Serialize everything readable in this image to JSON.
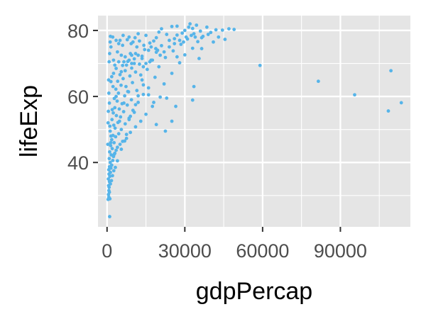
{
  "chart_data": {
    "type": "scatter",
    "xlabel": "gdpPercap",
    "ylabel": "lifeExp",
    "xlim": [
      -3500,
      117000
    ],
    "ylim": [
      20.5,
      84.5
    ],
    "x_ticks": [
      0,
      30000,
      60000,
      90000
    ],
    "x_tick_labels": [
      "0",
      "30000",
      "60000",
      "90000"
    ],
    "y_ticks": [
      40,
      60,
      80
    ],
    "y_tick_labels": [
      "40",
      "60",
      "80"
    ],
    "grid": true,
    "point_color": "#56b4e9",
    "panel_background": "#e5e5e5",
    "grid_color": "#ffffff",
    "points": [
      [
        1000,
        23.6
      ],
      [
        400,
        28.8
      ],
      [
        550,
        30.3
      ],
      [
        700,
        31.5
      ],
      [
        800,
        32.5
      ],
      [
        600,
        33.0
      ],
      [
        900,
        34.2
      ],
      [
        500,
        35.0
      ],
      [
        1100,
        35.8
      ],
      [
        750,
        36.5
      ],
      [
        1300,
        37.0
      ],
      [
        650,
        37.8
      ],
      [
        1500,
        38.3
      ],
      [
        950,
        38.7
      ],
      [
        1800,
        39.2
      ],
      [
        1200,
        40.0
      ],
      [
        2200,
        40.6
      ],
      [
        850,
        41.2
      ],
      [
        2500,
        41.8
      ],
      [
        1600,
        42.3
      ],
      [
        3000,
        42.8
      ],
      [
        1000,
        43.2
      ],
      [
        3500,
        43.7
      ],
      [
        2000,
        44.2
      ],
      [
        4000,
        44.6
      ],
      [
        1400,
        45.1
      ],
      [
        5000,
        45.5
      ],
      [
        2700,
        46.0
      ],
      [
        6000,
        46.4
      ],
      [
        1800,
        46.9
      ],
      [
        7500,
        47.3
      ],
      [
        3300,
        47.8
      ],
      [
        2300,
        48.2
      ],
      [
        4500,
        48.7
      ],
      [
        9000,
        49.1
      ],
      [
        1200,
        49.5
      ],
      [
        5500,
        50.0
      ],
      [
        3100,
        50.4
      ],
      [
        11000,
        50.8
      ],
      [
        2600,
        51.3
      ],
      [
        7000,
        51.7
      ],
      [
        4200,
        52.1
      ],
      [
        13000,
        52.5
      ],
      [
        1900,
        53.0
      ],
      [
        8500,
        53.4
      ],
      [
        5200,
        53.8
      ],
      [
        3600,
        54.2
      ],
      [
        15000,
        54.6
      ],
      [
        2400,
        55.0
      ],
      [
        6400,
        55.4
      ],
      [
        10000,
        55.8
      ],
      [
        4700,
        56.2
      ],
      [
        3000,
        56.6
      ],
      [
        17500,
        57.0
      ],
      [
        7800,
        57.4
      ],
      [
        5800,
        57.8
      ],
      [
        12000,
        58.2
      ],
      [
        3900,
        58.6
      ],
      [
        9400,
        59.0
      ],
      [
        2800,
        59.4
      ],
      [
        20500,
        59.8
      ],
      [
        6800,
        60.2
      ],
      [
        14000,
        60.6
      ],
      [
        4400,
        61.0
      ],
      [
        8300,
        61.4
      ],
      [
        11500,
        61.8
      ],
      [
        3400,
        62.2
      ],
      [
        16000,
        62.6
      ],
      [
        7300,
        63.0
      ],
      [
        5400,
        63.4
      ],
      [
        22000,
        63.8
      ],
      [
        9800,
        64.2
      ],
      [
        4100,
        64.6
      ],
      [
        13500,
        65.0
      ],
      [
        6200,
        65.4
      ],
      [
        18500,
        65.8
      ],
      [
        8800,
        66.2
      ],
      [
        5000,
        66.6
      ],
      [
        25000,
        67.0
      ],
      [
        11000,
        67.4
      ],
      [
        7000,
        67.8
      ],
      [
        15500,
        68.2
      ],
      [
        9500,
        68.6
      ],
      [
        20000,
        69.0
      ],
      [
        6000,
        69.4
      ],
      [
        12500,
        69.8
      ],
      [
        28000,
        70.2
      ],
      [
        8000,
        70.6
      ],
      [
        17000,
        71.0
      ],
      [
        10500,
        71.4
      ],
      [
        22500,
        71.8
      ],
      [
        13500,
        72.2
      ],
      [
        30000,
        72.6
      ],
      [
        9000,
        73.0
      ],
      [
        19000,
        73.4
      ],
      [
        25500,
        73.8
      ],
      [
        14500,
        74.2
      ],
      [
        33000,
        74.6
      ],
      [
        11500,
        75.0
      ],
      [
        21000,
        75.4
      ],
      [
        28500,
        75.8
      ],
      [
        16500,
        76.2
      ],
      [
        35000,
        76.6
      ],
      [
        24000,
        77.0
      ],
      [
        31000,
        77.4
      ],
      [
        19000,
        77.8
      ],
      [
        37000,
        78.2
      ],
      [
        27000,
        78.6
      ],
      [
        33500,
        79.0
      ],
      [
        40000,
        79.4
      ],
      [
        36000,
        79.8
      ],
      [
        42000,
        80.2
      ],
      [
        44500,
        80.1
      ],
      [
        47000,
        80.5
      ],
      [
        49000,
        80.3
      ],
      [
        38500,
        81.0
      ],
      [
        34500,
        81.6
      ],
      [
        32000,
        82.0
      ],
      [
        25000,
        81.2
      ],
      [
        2000,
        56.0
      ],
      [
        3500,
        60.0
      ],
      [
        1500,
        48.0
      ],
      [
        4800,
        52.5
      ],
      [
        2300,
        63.0
      ],
      [
        6500,
        58.0
      ],
      [
        8000,
        61.5
      ],
      [
        5500,
        67.5
      ],
      [
        3000,
        69.5
      ],
      [
        7000,
        72.0
      ],
      [
        1800,
        66.0
      ],
      [
        4000,
        73.5
      ],
      [
        9500,
        70.0
      ],
      [
        6000,
        75.5
      ],
      [
        10000,
        76.5
      ],
      [
        12000,
        79.0
      ],
      [
        8500,
        78.0
      ],
      [
        15000,
        78.5
      ],
      [
        5000,
        77.0
      ],
      [
        2500,
        71.0
      ],
      [
        14000,
        69.0
      ],
      [
        16000,
        74.0
      ],
      [
        11000,
        73.0
      ],
      [
        18000,
        76.8
      ],
      [
        20000,
        79.5
      ],
      [
        23000,
        78.8
      ],
      [
        26000,
        77.5
      ],
      [
        29000,
        79.2
      ],
      [
        21000,
        80.5
      ],
      [
        27000,
        81.3
      ],
      [
        30000,
        80.0
      ],
      [
        31500,
        81.0
      ],
      [
        33000,
        80.6
      ],
      [
        36500,
        77.8
      ],
      [
        39000,
        78.8
      ],
      [
        41000,
        76.5
      ],
      [
        43000,
        78.0
      ],
      [
        45500,
        77.3
      ],
      [
        35500,
        71.5
      ],
      [
        33000,
        58.9
      ],
      [
        33500,
        63.0
      ],
      [
        36500,
        74.5
      ],
      [
        23000,
        59.5
      ],
      [
        27000,
        72.0
      ],
      [
        25000,
        52.5
      ],
      [
        22500,
        49.5
      ],
      [
        19000,
        51.5
      ],
      [
        18000,
        58.2
      ],
      [
        26500,
        57.0
      ],
      [
        16000,
        60.5
      ],
      [
        14000,
        63.5
      ],
      [
        13000,
        66.5
      ],
      [
        12000,
        60.2
      ],
      [
        11000,
        57.5
      ],
      [
        10500,
        55.2
      ],
      [
        9000,
        54.0
      ],
      [
        8500,
        53.0
      ],
      [
        7500,
        48.5
      ],
      [
        6800,
        46.5
      ],
      [
        5500,
        44.0
      ],
      [
        4000,
        40.5
      ],
      [
        3200,
        38.5
      ],
      [
        2800,
        42.5
      ],
      [
        2600,
        37.5
      ],
      [
        2100,
        36.0
      ],
      [
        1700,
        34.5
      ],
      [
        1300,
        33.5
      ],
      [
        900,
        31.0
      ],
      [
        700,
        29.5
      ],
      [
        1100,
        29.0
      ],
      [
        59000,
        69.4
      ],
      [
        81500,
        64.6
      ],
      [
        95500,
        60.5
      ],
      [
        108500,
        55.6
      ],
      [
        109500,
        67.8
      ],
      [
        113500,
        58.1
      ],
      [
        1000,
        73.0
      ],
      [
        1200,
        76.5
      ],
      [
        1500,
        75.0
      ],
      [
        800,
        70.5
      ],
      [
        600,
        65.0
      ],
      [
        700,
        61.0
      ],
      [
        500,
        55.5
      ],
      [
        400,
        52.0
      ],
      [
        300,
        45.5
      ],
      [
        1300,
        78.2
      ],
      [
        2200,
        78.0
      ],
      [
        3500,
        77.0
      ],
      [
        4500,
        76.0
      ],
      [
        6200,
        78.5
      ],
      [
        7800,
        77.2
      ],
      [
        9300,
        76.0
      ],
      [
        10800,
        77.8
      ],
      [
        12500,
        76.8
      ],
      [
        14200,
        75.5
      ],
      [
        17000,
        75.0
      ],
      [
        18800,
        74.5
      ],
      [
        24000,
        75.0
      ],
      [
        26000,
        76.0
      ],
      [
        28000,
        77.0
      ],
      [
        30500,
        78.0
      ],
      [
        32500,
        78.5
      ],
      [
        34000,
        78.0
      ],
      [
        29500,
        76.5
      ],
      [
        22000,
        73.5
      ],
      [
        20500,
        72.5
      ],
      [
        19500,
        74.0
      ],
      [
        17500,
        71.0
      ],
      [
        16500,
        70.5
      ],
      [
        15000,
        70.0
      ],
      [
        13500,
        71.5
      ],
      [
        12000,
        72.5
      ],
      [
        10500,
        70.0
      ],
      [
        9500,
        72.5
      ],
      [
        8500,
        71.0
      ],
      [
        7500,
        69.5
      ],
      [
        6500,
        70.5
      ],
      [
        5500,
        72.5
      ],
      [
        4500,
        70.5
      ],
      [
        3500,
        68.5
      ],
      [
        2500,
        67.0
      ],
      [
        1500,
        64.5
      ],
      [
        900,
        58.0
      ],
      [
        1100,
        51.0
      ],
      [
        1400,
        46.0
      ]
    ]
  }
}
